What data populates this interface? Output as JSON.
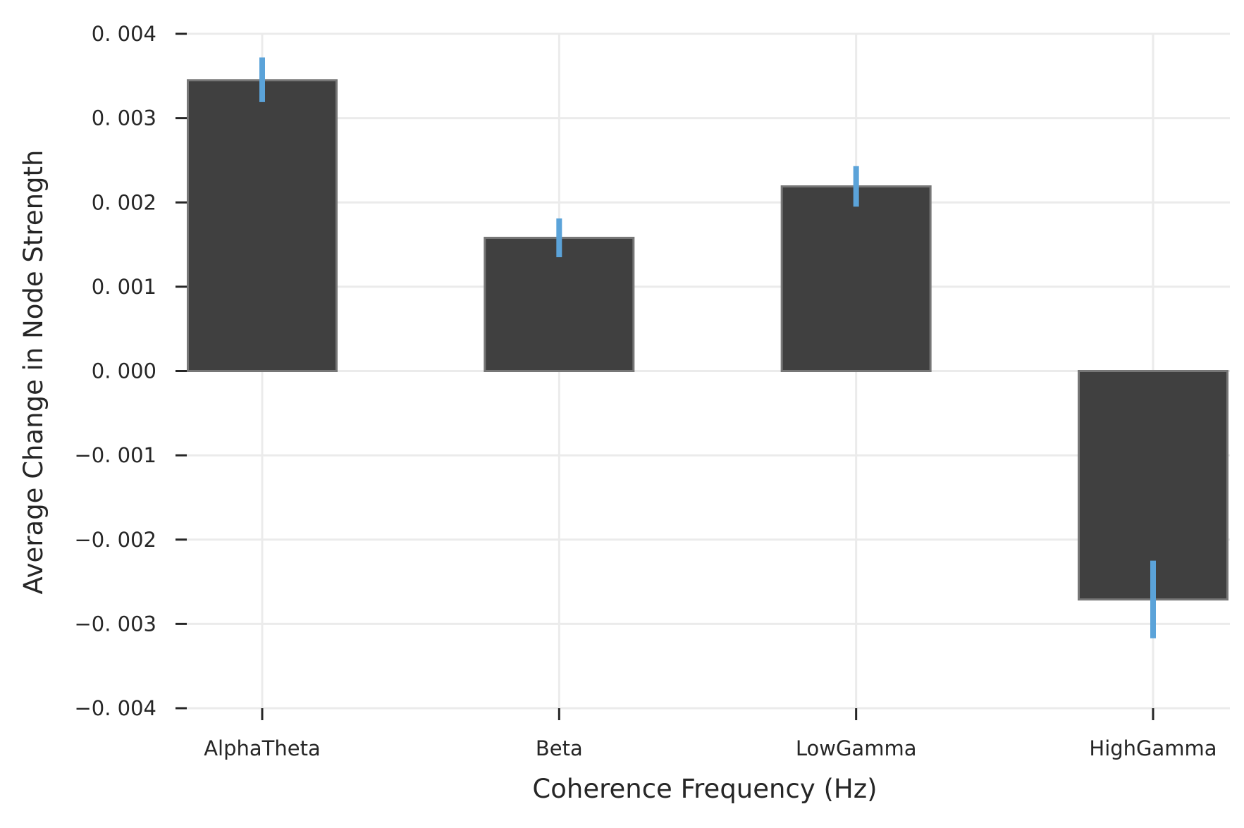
{
  "chart_data": {
    "type": "bar",
    "title": "",
    "xlabel": "Coherence Frequency (Hz)",
    "ylabel": "Average Change in Node Strength",
    "categories": [
      "AlphaTheta",
      "Beta",
      "LowGamma",
      "HighGamma"
    ],
    "values": [
      0.00345,
      0.00158,
      0.00219,
      -0.00271
    ],
    "error_bars": [
      [
        0.00319,
        0.00372
      ],
      [
        0.00135,
        0.00181
      ],
      [
        0.00195,
        0.00243
      ],
      [
        -0.00317,
        -0.00225
      ]
    ],
    "ylim": [
      -0.004,
      0.004
    ],
    "yticks": [
      0.004,
      0.003,
      0.002,
      0.001,
      0.0,
      -0.001,
      -0.002,
      -0.003,
      -0.004
    ],
    "ytick_labels": [
      "0. 004",
      "0. 003",
      "0. 002",
      "0. 001",
      "0. 000",
      "−0. 001",
      "−0. 002",
      "−0. 003",
      "−0. 004"
    ],
    "grid": true,
    "legend": "none",
    "colors": {
      "bar_fill": "#404040",
      "bar_edge": "#777777",
      "error_bar": "#5ba3d9",
      "grid": "#ebebeb",
      "tick": "#262626"
    }
  }
}
